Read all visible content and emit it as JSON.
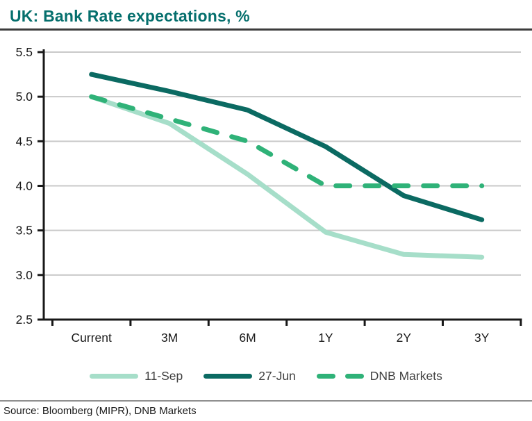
{
  "header": {
    "title": "UK: Bank Rate expectations, %"
  },
  "chart_data": {
    "type": "line",
    "title": "UK: Bank Rate expectations, %",
    "categories": [
      "Current",
      "3M",
      "6M",
      "1Y",
      "2Y",
      "3Y"
    ],
    "series": [
      {
        "name": "11-Sep",
        "color": "#A6DEC9",
        "dashed": false,
        "values": [
          5.0,
          4.7,
          4.13,
          3.48,
          3.23,
          3.2
        ]
      },
      {
        "name": "27-Jun",
        "color": "#0B6A62",
        "dashed": false,
        "values": [
          5.25,
          5.06,
          4.85,
          4.44,
          3.89,
          3.62
        ]
      },
      {
        "name": "DNB Markets",
        "color": "#2FB278",
        "dashed": true,
        "values": [
          5.0,
          4.75,
          4.5,
          4.0,
          4.0,
          4.0
        ]
      }
    ],
    "ylim": [
      2.5,
      5.5
    ],
    "yticks": [
      2.5,
      3.0,
      3.5,
      4.0,
      4.5,
      5.0,
      5.5
    ],
    "ytick_labels": [
      "2.5",
      "3.0",
      "3.5",
      "4.0",
      "4.5",
      "5.0",
      "5.5"
    ],
    "xlabel": "",
    "ylabel": "",
    "grid": "horizontal",
    "legend_position": "bottom"
  },
  "colors": {
    "title": "#056F6D",
    "axis": "#181818",
    "gridline": "#C9C9C9",
    "tick_label": "#1A1A1A",
    "title_rule": "#3C3C3C",
    "source_rule": "#8F8F8F"
  },
  "footer": {
    "source": "Source: Bloomberg (MIPR), DNB Markets"
  }
}
